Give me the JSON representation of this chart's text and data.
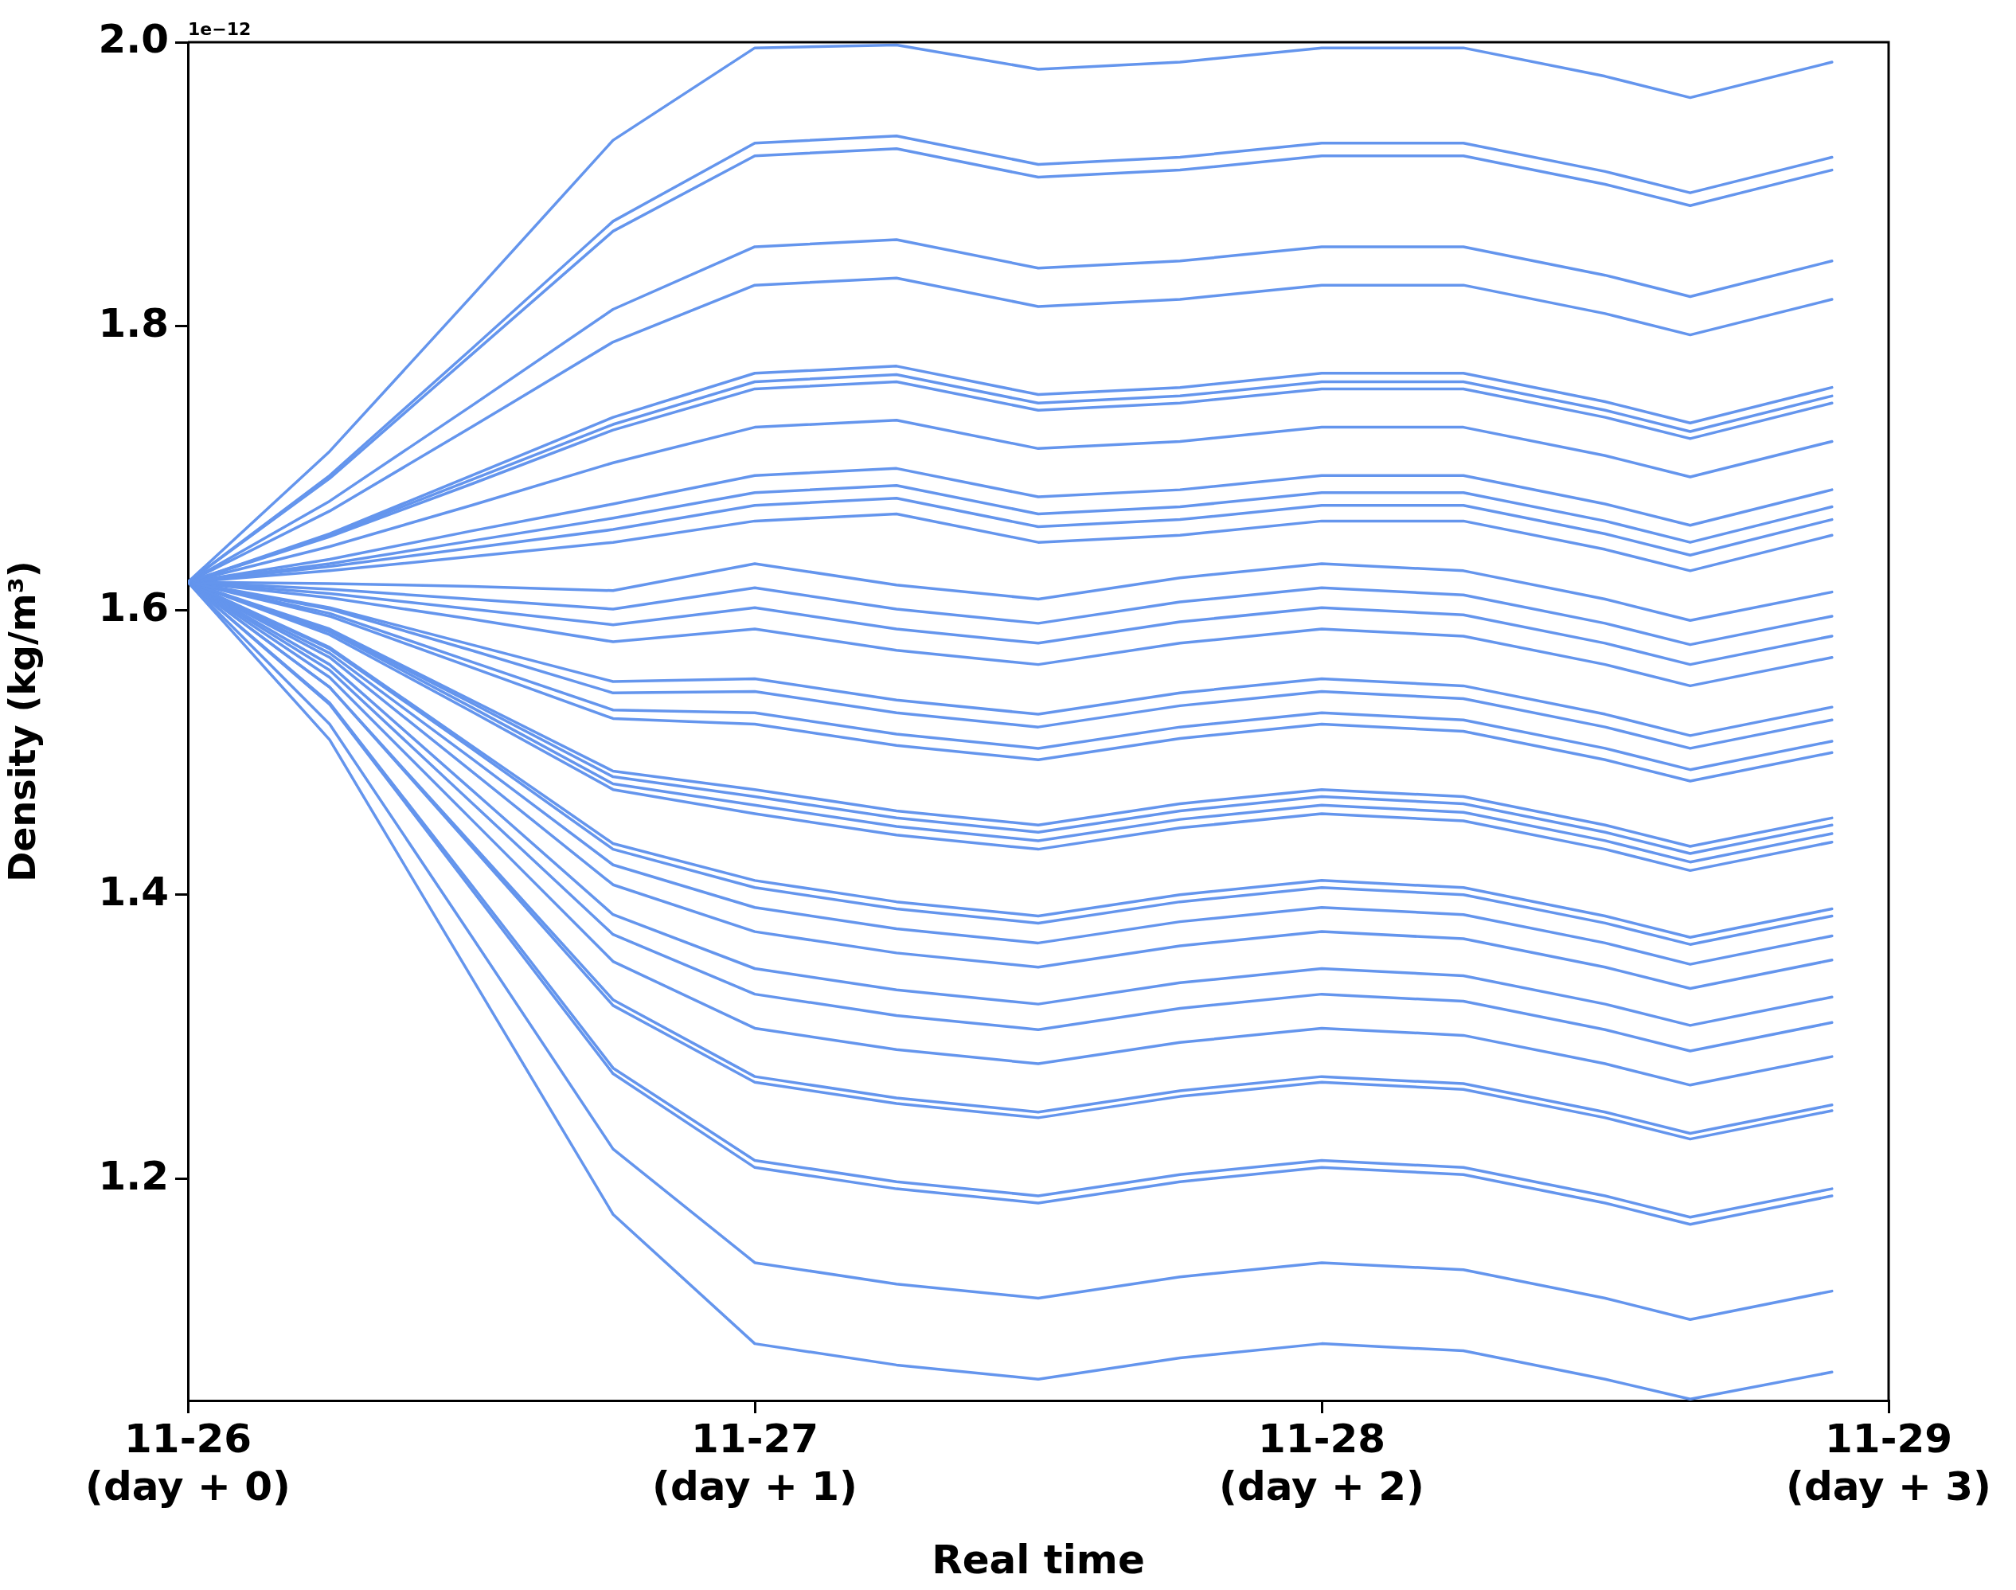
{
  "chart_data": {
    "type": "line",
    "xlabel": "Real time",
    "ylabel": "Density (kg/m³)",
    "annotations": [
      "1e−12"
    ],
    "x": [
      "--11-26T00:00",
      "--11-26T06:00",
      "--11-26T12:00",
      "--11-26T18:00",
      "--11-27T00:00",
      "--11-27T06:00",
      "--11-27T12:00",
      "--11-27T18:00",
      "--11-28T00:00",
      "--11-28T06:00",
      "--11-28T12:00",
      "--11-28T15:36",
      "--11-28T21:36"
    ],
    "xlim": [
      "--11-26",
      "--11-29"
    ],
    "xticks": [
      {
        "value": "--11-26",
        "label": "11-26\n(day + 0)"
      },
      {
        "value": "--11-27",
        "label": "11-27\n(day + 1)"
      },
      {
        "value": "--11-28",
        "label": "11-28\n(day + 2)"
      },
      {
        "value": "--11-29",
        "label": "11-29\n(day + 3)"
      }
    ],
    "ylim": [
      1.044,
      2.0
    ],
    "yticks": [
      1.2,
      1.4,
      1.6,
      1.8,
      {
        "value": 2,
        "label": "2.0"
      }
    ],
    "grid": false,
    "legend": false,
    "marker": "none",
    "line_style": "solid",
    "series": [
      {
        "color": "#6495ed",
        "values": [
          1.62,
          1.712,
          1.821,
          1.931,
          1.996,
          1.998,
          1.981,
          1.986,
          1.996,
          1.996,
          1.976,
          1.961,
          1.986
        ]
      },
      {
        "color": "#6495ed",
        "values": [
          1.62,
          1.695,
          1.784,
          1.874,
          1.929,
          1.934,
          1.914,
          1.919,
          1.929,
          1.929,
          1.909,
          1.894,
          1.919
        ]
      },
      {
        "color": "#6495ed",
        "values": [
          1.62,
          1.693,
          1.78,
          1.867,
          1.92,
          1.925,
          1.905,
          1.91,
          1.92,
          1.92,
          1.9,
          1.885,
          1.91
        ]
      },
      {
        "color": "#6495ed",
        "values": [
          1.62,
          1.677,
          1.744,
          1.812,
          1.856,
          1.861,
          1.841,
          1.846,
          1.856,
          1.856,
          1.836,
          1.821,
          1.846
        ]
      },
      {
        "color": "#6495ed",
        "values": [
          1.62,
          1.67,
          1.729,
          1.789,
          1.829,
          1.834,
          1.814,
          1.819,
          1.829,
          1.829,
          1.809,
          1.794,
          1.819
        ]
      },
      {
        "color": "#6495ed",
        "values": [
          1.62,
          1.654,
          1.695,
          1.736,
          1.767,
          1.772,
          1.752,
          1.757,
          1.767,
          1.767,
          1.747,
          1.732,
          1.757
        ]
      },
      {
        "color": "#6495ed",
        "values": [
          1.62,
          1.653,
          1.692,
          1.731,
          1.761,
          1.766,
          1.746,
          1.751,
          1.761,
          1.761,
          1.741,
          1.726,
          1.751
        ]
      },
      {
        "color": "#6495ed",
        "values": [
          1.62,
          1.652,
          1.689,
          1.727,
          1.756,
          1.761,
          1.741,
          1.746,
          1.756,
          1.756,
          1.736,
          1.721,
          1.746
        ]
      },
      {
        "color": "#6495ed",
        "values": [
          1.62,
          1.645,
          1.674,
          1.704,
          1.729,
          1.734,
          1.714,
          1.719,
          1.729,
          1.729,
          1.709,
          1.694,
          1.719
        ]
      },
      {
        "color": "#6495ed",
        "values": [
          1.62,
          1.636,
          1.656,
          1.675,
          1.695,
          1.7,
          1.68,
          1.685,
          1.695,
          1.695,
          1.675,
          1.66,
          1.685
        ]
      },
      {
        "color": "#6495ed",
        "values": [
          1.62,
          1.633,
          1.649,
          1.665,
          1.683,
          1.688,
          1.668,
          1.673,
          1.683,
          1.683,
          1.663,
          1.648,
          1.673
        ]
      },
      {
        "color": "#6495ed",
        "values": [
          1.62,
          1.631,
          1.644,
          1.657,
          1.674,
          1.679,
          1.659,
          1.664,
          1.674,
          1.674,
          1.654,
          1.639,
          1.664
        ]
      },
      {
        "color": "#6495ed",
        "values": [
          1.62,
          1.628,
          1.638,
          1.648,
          1.663,
          1.668,
          1.648,
          1.653,
          1.663,
          1.663,
          1.643,
          1.628,
          1.653
        ]
      },
      {
        "color": "#6495ed",
        "values": [
          1.62,
          1.619,
          1.617,
          1.614,
          1.633,
          1.618,
          1.608,
          1.623,
          1.633,
          1.628,
          1.608,
          1.593,
          1.613
        ]
      },
      {
        "color": "#6495ed",
        "values": [
          1.62,
          1.615,
          1.608,
          1.601,
          1.616,
          1.601,
          1.591,
          1.606,
          1.616,
          1.611,
          1.591,
          1.576,
          1.596
        ]
      },
      {
        "color": "#6495ed",
        "values": [
          1.62,
          1.612,
          1.601,
          1.59,
          1.602,
          1.587,
          1.577,
          1.592,
          1.602,
          1.597,
          1.577,
          1.562,
          1.582
        ]
      },
      {
        "color": "#6495ed",
        "values": [
          1.62,
          1.609,
          1.594,
          1.578,
          1.587,
          1.572,
          1.562,
          1.577,
          1.587,
          1.582,
          1.562,
          1.547,
          1.567
        ]
      },
      {
        "color": "#6495ed",
        "values": [
          1.62,
          1.602,
          1.576,
          1.55,
          1.552,
          1.537,
          1.527,
          1.542,
          1.552,
          1.547,
          1.527,
          1.512,
          1.532
        ]
      },
      {
        "color": "#6495ed",
        "values": [
          1.62,
          1.601,
          1.572,
          1.542,
          1.543,
          1.528,
          1.518,
          1.533,
          1.543,
          1.538,
          1.518,
          1.503,
          1.523
        ]
      },
      {
        "color": "#6495ed",
        "values": [
          1.62,
          1.598,
          1.564,
          1.53,
          1.528,
          1.513,
          1.503,
          1.518,
          1.528,
          1.523,
          1.503,
          1.488,
          1.508
        ]
      },
      {
        "color": "#6495ed",
        "values": [
          1.62,
          1.596,
          1.56,
          1.524,
          1.52,
          1.505,
          1.495,
          1.51,
          1.52,
          1.515,
          1.495,
          1.48,
          1.5
        ]
      },
      {
        "color": "#6495ed",
        "values": [
          1.62,
          1.587,
          1.537,
          1.487,
          1.474,
          1.459,
          1.449,
          1.464,
          1.474,
          1.469,
          1.449,
          1.434,
          1.454
        ]
      },
      {
        "color": "#6495ed",
        "values": [
          1.62,
          1.586,
          1.535,
          1.483,
          1.469,
          1.454,
          1.444,
          1.459,
          1.469,
          1.464,
          1.444,
          1.429,
          1.449
        ]
      },
      {
        "color": "#6495ed",
        "values": [
          1.62,
          1.585,
          1.532,
          1.478,
          1.463,
          1.448,
          1.438,
          1.453,
          1.463,
          1.458,
          1.438,
          1.423,
          1.443
        ]
      },
      {
        "color": "#6495ed",
        "values": [
          1.62,
          1.583,
          1.529,
          1.474,
          1.457,
          1.442,
          1.432,
          1.447,
          1.457,
          1.452,
          1.432,
          1.417,
          1.437
        ]
      },
      {
        "color": "#6495ed",
        "values": [
          1.62,
          1.574,
          1.505,
          1.436,
          1.41,
          1.395,
          1.385,
          1.4,
          1.41,
          1.405,
          1.385,
          1.37,
          1.39
        ]
      },
      {
        "color": "#6495ed",
        "values": [
          1.62,
          1.573,
          1.503,
          1.432,
          1.405,
          1.39,
          1.38,
          1.395,
          1.405,
          1.4,
          1.38,
          1.365,
          1.385
        ]
      },
      {
        "color": "#6495ed",
        "values": [
          1.62,
          1.57,
          1.496,
          1.421,
          1.391,
          1.376,
          1.366,
          1.381,
          1.391,
          1.386,
          1.366,
          1.351,
          1.371
        ]
      },
      {
        "color": "#6495ed",
        "values": [
          1.62,
          1.567,
          1.487,
          1.407,
          1.374,
          1.359,
          1.349,
          1.364,
          1.374,
          1.369,
          1.349,
          1.334,
          1.354
        ]
      },
      {
        "color": "#6495ed",
        "values": [
          1.62,
          1.562,
          1.474,
          1.386,
          1.348,
          1.333,
          1.323,
          1.338,
          1.348,
          1.343,
          1.323,
          1.308,
          1.328
        ]
      },
      {
        "color": "#6495ed",
        "values": [
          1.62,
          1.558,
          1.465,
          1.372,
          1.33,
          1.315,
          1.305,
          1.32,
          1.33,
          1.325,
          1.305,
          1.29,
          1.31
        ]
      },
      {
        "color": "#6495ed",
        "values": [
          1.62,
          1.553,
          1.453,
          1.353,
          1.306,
          1.291,
          1.281,
          1.296,
          1.306,
          1.301,
          1.281,
          1.266,
          1.286
        ]
      },
      {
        "color": "#6495ed",
        "values": [
          1.62,
          1.546,
          1.436,
          1.326,
          1.272,
          1.257,
          1.247,
          1.262,
          1.272,
          1.267,
          1.247,
          1.232,
          1.252
        ]
      },
      {
        "color": "#6495ed",
        "values": [
          1.62,
          1.546,
          1.434,
          1.322,
          1.268,
          1.253,
          1.243,
          1.258,
          1.268,
          1.263,
          1.243,
          1.228,
          1.248
        ]
      },
      {
        "color": "#6495ed",
        "values": [
          1.62,
          1.535,
          1.407,
          1.278,
          1.213,
          1.198,
          1.188,
          1.203,
          1.213,
          1.208,
          1.188,
          1.173,
          1.193
        ]
      },
      {
        "color": "#6495ed",
        "values": [
          1.62,
          1.534,
          1.404,
          1.274,
          1.208,
          1.193,
          1.183,
          1.198,
          1.208,
          1.203,
          1.183,
          1.168,
          1.188
        ]
      },
      {
        "color": "#6495ed",
        "values": [
          1.62,
          1.52,
          1.371,
          1.221,
          1.141,
          1.126,
          1.116,
          1.131,
          1.141,
          1.136,
          1.116,
          1.101,
          1.121
        ]
      },
      {
        "color": "#6495ed",
        "values": [
          1.62,
          1.509,
          1.342,
          1.175,
          1.084,
          1.069,
          1.059,
          1.074,
          1.084,
          1.079,
          1.059,
          1.045,
          1.064
        ]
      }
    ]
  }
}
